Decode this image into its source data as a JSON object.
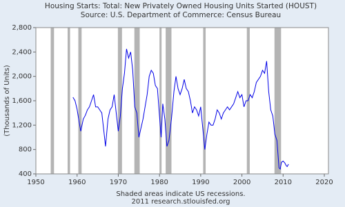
{
  "chart_data": {
    "type": "line",
    "title": "Housing Starts: Total: New Privately Owned Housing Units Started (HOUST)",
    "subtitle": "Source: U.S. Department of Commerce: Census Bureau",
    "y_label": "(Thousands of Units)",
    "note": "Shaded areas indicate US recessions.",
    "credit": "2011 research.stlouisfed.org",
    "xlim": [
      1950,
      2021
    ],
    "xticks": [
      1950,
      1960,
      1970,
      1980,
      1990,
      2000,
      2010,
      2020
    ],
    "ylim": [
      400,
      2800
    ],
    "yticks": [
      400,
      800,
      {
        "value": 1200,
        "label": "1,200"
      },
      {
        "value": 1600,
        "label": "1,600"
      },
      {
        "value": 2000,
        "label": "2,000"
      },
      {
        "value": 2400,
        "label": "2,400"
      },
      {
        "value": 2800,
        "label": "2,800"
      }
    ],
    "recession_color": "#b4b4b4",
    "recessions": [
      [
        1953.6,
        1954.4
      ],
      [
        1957.7,
        1958.3
      ],
      [
        1960.3,
        1961.1
      ],
      [
        1969.9,
        1970.9
      ],
      [
        1973.9,
        1975.2
      ],
      [
        1980.0,
        1980.5
      ],
      [
        1981.5,
        1982.9
      ],
      [
        1990.6,
        1991.2
      ],
      [
        2001.2,
        2001.9
      ],
      [
        2007.9,
        2009.5
      ]
    ],
    "x": [
      1959.0,
      1959.5,
      1960.0,
      1960.5,
      1960.9,
      1961.5,
      1962.0,
      1962.5,
      1963.0,
      1963.5,
      1964.0,
      1964.5,
      1965.0,
      1965.5,
      1966.0,
      1966.5,
      1966.9,
      1967.5,
      1968.0,
      1968.5,
      1969.0,
      1969.5,
      1970.0,
      1970.5,
      1971.0,
      1971.5,
      1972.0,
      1972.5,
      1973.0,
      1973.5,
      1974.0,
      1974.5,
      1975.0,
      1975.5,
      1976.0,
      1976.5,
      1977.0,
      1977.5,
      1978.0,
      1978.5,
      1979.0,
      1979.5,
      1980.0,
      1980.4,
      1980.8,
      1981.3,
      1981.8,
      1982.3,
      1982.9,
      1983.5,
      1984.0,
      1984.5,
      1985.0,
      1985.5,
      1986.0,
      1986.5,
      1987.0,
      1987.5,
      1988.0,
      1988.5,
      1989.0,
      1989.5,
      1990.0,
      1990.5,
      1991.0,
      1991.5,
      1992.0,
      1992.5,
      1993.0,
      1993.5,
      1994.0,
      1994.5,
      1995.0,
      1995.5,
      1996.0,
      1996.5,
      1997.0,
      1997.5,
      1998.0,
      1998.5,
      1999.0,
      1999.5,
      2000.0,
      2000.5,
      2001.0,
      2001.5,
      2002.0,
      2002.5,
      2003.0,
      2003.5,
      2004.0,
      2004.5,
      2005.0,
      2005.5,
      2006.0,
      2006.5,
      2007.0,
      2007.5,
      2008.0,
      2008.5,
      2009.0,
      2009.3,
      2009.6,
      2010.0,
      2010.4,
      2010.8,
      2011.0,
      2011.3
    ],
    "series": [
      {
        "color": "#0000e6",
        "values": [
          1657,
          1600,
          1460,
          1250,
          1100,
          1300,
          1360,
          1450,
          1500,
          1600,
          1700,
          1500,
          1500,
          1450,
          1400,
          1100,
          850,
          1300,
          1450,
          1500,
          1700,
          1400,
          1100,
          1350,
          1800,
          2050,
          2450,
          2300,
          2400,
          2100,
          1500,
          1400,
          1000,
          1150,
          1300,
          1500,
          1700,
          2000,
          2100,
          2050,
          1850,
          1800,
          1350,
          1000,
          1550,
          1300,
          850,
          950,
          1300,
          1750,
          2000,
          1800,
          1700,
          1800,
          1950,
          1800,
          1750,
          1600,
          1400,
          1500,
          1450,
          1350,
          1500,
          1150,
          800,
          1050,
          1250,
          1200,
          1200,
          1300,
          1450,
          1400,
          1300,
          1400,
          1450,
          1500,
          1450,
          1500,
          1550,
          1650,
          1750,
          1650,
          1700,
          1500,
          1600,
          1600,
          1700,
          1650,
          1750,
          1900,
          1950,
          2000,
          2100,
          2050,
          2250,
          1750,
          1450,
          1350,
          1050,
          950,
          500,
          480,
          590,
          610,
          580,
          530,
          520,
          560
        ]
      }
    ]
  }
}
